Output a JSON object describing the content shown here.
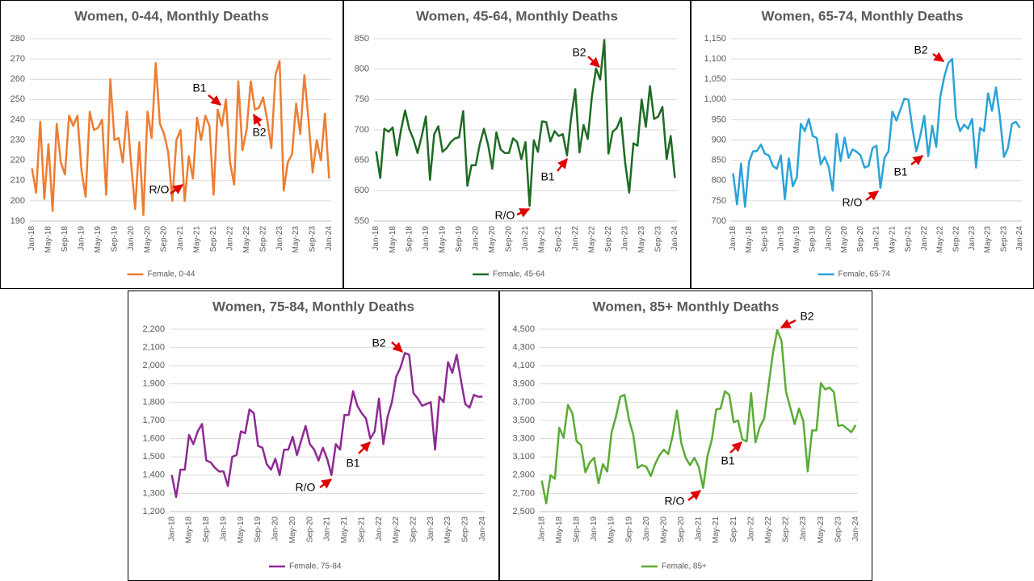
{
  "chart_data": [
    {
      "type": "line",
      "title": "Women, 0-44, Monthly Deaths",
      "categories": [
        "Jan-18",
        null,
        null,
        null,
        "May-18",
        null,
        null,
        null,
        "Sep-18",
        null,
        null,
        null,
        "Jan-19",
        null,
        null,
        null,
        "May-19",
        null,
        null,
        null,
        "Sep-19",
        null,
        null,
        null,
        "Jan-20",
        null,
        null,
        null,
        "May-20",
        null,
        null,
        null,
        "Sep-20",
        null,
        null,
        null,
        "Jan-21",
        null,
        null,
        null,
        "May-21",
        null,
        null,
        null,
        "Sep-21",
        null,
        null,
        null,
        "Jan-22",
        null,
        null,
        null,
        "May-22",
        null,
        null,
        null,
        "Sep-22",
        null,
        null,
        null,
        "Jan-23",
        null,
        null,
        null,
        "May-23",
        null,
        null,
        null,
        "Sep-23",
        null,
        null,
        null,
        "Jan-24"
      ],
      "series": [
        {
          "name": "Female, 0-44",
          "color": "#ed7d31",
          "values": [
            216,
            204,
            239,
            201,
            228,
            195,
            238,
            219,
            213,
            242,
            237,
            242,
            215,
            202,
            244,
            235,
            236,
            240,
            203,
            260,
            230,
            231,
            219,
            244,
            219,
            196,
            229,
            193,
            244,
            231,
            268,
            238,
            233,
            224,
            200,
            230,
            235,
            200,
            222,
            211,
            241,
            230,
            242,
            237,
            203,
            245,
            237,
            250,
            219,
            208,
            259,
            225,
            235,
            259,
            245,
            246,
            251,
            240,
            226,
            262,
            269,
            205,
            219,
            223,
            248,
            233,
            262,
            240,
            214,
            230,
            220,
            243,
            211
          ]
        }
      ],
      "ylim": [
        190,
        280
      ],
      "yticks": [
        190,
        200,
        210,
        220,
        230,
        240,
        250,
        260,
        270,
        280
      ],
      "grid": true,
      "legend": "bottom",
      "annotations": [
        "R/O",
        "B1",
        "B2"
      ]
    },
    {
      "type": "line",
      "title": "Women, 45-64, Monthly Deaths",
      "categories": [
        "Jan-18",
        null,
        null,
        null,
        "May-18",
        null,
        null,
        null,
        "Sep-18",
        null,
        null,
        null,
        "Jan-19",
        null,
        null,
        null,
        "May-19",
        null,
        null,
        null,
        "Sep-19",
        null,
        null,
        null,
        "Jan-20",
        null,
        null,
        null,
        "May-20",
        null,
        null,
        null,
        "Sep-20",
        null,
        null,
        null,
        "Jan-21",
        null,
        null,
        null,
        "May-21",
        null,
        null,
        null,
        "Sep-21",
        null,
        null,
        null,
        "Jan-22",
        null,
        null,
        null,
        "May-22",
        null,
        null,
        null,
        "Sep-22",
        null,
        null,
        null,
        "Jan-23",
        null,
        null,
        null,
        "May-23",
        null,
        null,
        null,
        "Sep-23",
        null,
        null,
        null,
        "Jan-24"
      ],
      "series": [
        {
          "name": "Female, 45-64",
          "color": "#1e6b24",
          "values": [
            665,
            621,
            702,
            697,
            704,
            658,
            700,
            732,
            701,
            685,
            662,
            690,
            722,
            618,
            693,
            706,
            664,
            670,
            680,
            686,
            688,
            731,
            608,
            642,
            642,
            677,
            702,
            675,
            636,
            696,
            668,
            662,
            662,
            686,
            680,
            652,
            680,
            575,
            683,
            664,
            714,
            713,
            681,
            698,
            690,
            693,
            658,
            720,
            767,
            663,
            708,
            685,
            755,
            801,
            783,
            848,
            661,
            697,
            703,
            720,
            647,
            597,
            678,
            674,
            750,
            705,
            772,
            718,
            722,
            738,
            652,
            690,
            621
          ]
        }
      ],
      "ylim": [
        550,
        850
      ],
      "yticks": [
        550,
        600,
        650,
        700,
        750,
        800,
        850
      ],
      "grid": true,
      "legend": "bottom",
      "annotations": [
        "R/O",
        "B1",
        "B2"
      ]
    },
    {
      "type": "line",
      "title": "Women, 65-74, Monthly Deaths",
      "categories": [
        "Jan-18",
        null,
        null,
        null,
        "May-18",
        null,
        null,
        null,
        "Sep-18",
        null,
        null,
        null,
        "Jan-19",
        null,
        null,
        null,
        "May-19",
        null,
        null,
        null,
        "Sep-19",
        null,
        null,
        null,
        "Jan-20",
        null,
        null,
        null,
        "May-20",
        null,
        null,
        null,
        "Sep-20",
        null,
        null,
        null,
        "Jan-21",
        null,
        null,
        null,
        "May-21",
        null,
        null,
        null,
        "Sep-21",
        null,
        null,
        null,
        "Jan-22",
        null,
        null,
        null,
        "May-22",
        null,
        null,
        null,
        "Sep-22",
        null,
        null,
        null,
        "Jan-23",
        null,
        null,
        null,
        "May-23",
        null,
        null,
        null,
        "Sep-23",
        null,
        null,
        null,
        "Jan-24"
      ],
      "series": [
        {
          "name": "Female, 65-74",
          "color": "#2aa3d8",
          "values": [
            818,
            741,
            842,
            735,
            846,
            872,
            873,
            889,
            866,
            862,
            836,
            829,
            862,
            754,
            855,
            786,
            808,
            940,
            922,
            952,
            910,
            905,
            840,
            858,
            834,
            775,
            915,
            848,
            906,
            856,
            877,
            871,
            862,
            832,
            836,
            880,
            886,
            782,
            856,
            872,
            970,
            948,
            975,
            1002,
            1000,
            930,
            872,
            910,
            960,
            860,
            935,
            883,
            1005,
            1055,
            1090,
            1100,
            955,
            922,
            938,
            928,
            952,
            832,
            930,
            922,
            1015,
            972,
            1030,
            955,
            858,
            880,
            940,
            945,
            930
          ]
        }
      ],
      "ylim": [
        700,
        1150
      ],
      "yticks": [
        700,
        750,
        800,
        850,
        900,
        950,
        {
          "value": 1000,
          "label": "1,000"
        },
        {
          "value": 1050,
          "label": "1,050"
        },
        {
          "value": 1100,
          "label": "1,100"
        },
        {
          "value": 1150,
          "label": "1,150"
        }
      ],
      "grid": true,
      "legend": "bottom",
      "annotations": [
        "R/O",
        "B1",
        "B2"
      ]
    },
    {
      "type": "line",
      "title": "Women, 75-84, Monthly Deaths",
      "categories": [
        "Jan-18",
        null,
        null,
        null,
        "May-18",
        null,
        null,
        null,
        "Sep-18",
        null,
        null,
        null,
        "Jan-19",
        null,
        null,
        null,
        "May-19",
        null,
        null,
        null,
        "Sep-19",
        null,
        null,
        null,
        "Jan-20",
        null,
        null,
        null,
        "May-20",
        null,
        null,
        null,
        "Sep-20",
        null,
        null,
        null,
        "Jan-21",
        null,
        null,
        null,
        "May-21",
        null,
        null,
        null,
        "Sep-21",
        null,
        null,
        null,
        "Jan-22",
        null,
        null,
        null,
        "May-22",
        null,
        null,
        null,
        "Sep-22",
        null,
        null,
        null,
        "Jan-23",
        null,
        null,
        null,
        "May-23",
        null,
        null,
        null,
        "Sep-23",
        null,
        null,
        null,
        "Jan-24"
      ],
      "series": [
        {
          "name": "Female, 75-84",
          "color": "#8e2a94",
          "values": [
            1400,
            1280,
            1430,
            1430,
            1620,
            1570,
            1640,
            1680,
            1480,
            1470,
            1440,
            1420,
            1420,
            1340,
            1500,
            1510,
            1640,
            1630,
            1760,
            1740,
            1560,
            1550,
            1460,
            1430,
            1490,
            1400,
            1540,
            1540,
            1610,
            1510,
            1590,
            1670,
            1570,
            1540,
            1480,
            1550,
            1490,
            1400,
            1570,
            1540,
            1730,
            1730,
            1860,
            1780,
            1740,
            1710,
            1600,
            1640,
            1820,
            1570,
            1720,
            1800,
            1940,
            1990,
            2070,
            2060,
            1850,
            1820,
            1780,
            1790,
            1800,
            1540,
            1830,
            1800,
            2020,
            1960,
            2060,
            1920,
            1790,
            1770,
            1840,
            1830,
            1830
          ]
        }
      ],
      "ylim": [
        1200,
        2200
      ],
      "yticks": [
        {
          "value": 1200,
          "label": "1,200"
        },
        {
          "value": 1300,
          "label": "1,300"
        },
        {
          "value": 1400,
          "label": "1,400"
        },
        {
          "value": 1500,
          "label": "1,500"
        },
        {
          "value": 1600,
          "label": "1,600"
        },
        {
          "value": 1700,
          "label": "1,700"
        },
        {
          "value": 1800,
          "label": "1,800"
        },
        {
          "value": 1900,
          "label": "1,900"
        },
        {
          "value": 2000,
          "label": "2,000"
        },
        {
          "value": 2100,
          "label": "2,100"
        },
        {
          "value": 2200,
          "label": "2,200"
        }
      ],
      "grid": true,
      "legend": "bottom",
      "annotations": [
        "R/O",
        "B1",
        "B2"
      ]
    },
    {
      "type": "line",
      "title": "Women, 85+ Monthly Deaths",
      "categories": [
        "Jan-18",
        null,
        null,
        null,
        "May-18",
        null,
        null,
        null,
        "Sep-18",
        null,
        null,
        null,
        "Jan-19",
        null,
        null,
        null,
        "May-19",
        null,
        null,
        null,
        "Sep-19",
        null,
        null,
        null,
        "Jan-20",
        null,
        null,
        null,
        "May-20",
        null,
        null,
        null,
        "Sep-20",
        null,
        null,
        null,
        "Jan-21",
        null,
        null,
        null,
        "May-21",
        null,
        null,
        null,
        "Sep-21",
        null,
        null,
        null,
        "Jan-22",
        null,
        null,
        null,
        "May-22",
        null,
        null,
        null,
        "Sep-22",
        null,
        null,
        null,
        "Jan-23",
        null,
        null,
        null,
        "May-23",
        null,
        null,
        null,
        "Sep-23",
        null,
        null,
        null,
        "Jan-24"
      ],
      "series": [
        {
          "name": "Female, 85+",
          "color": "#5aac35",
          "values": [
            2840,
            2590,
            2900,
            2860,
            3420,
            3310,
            3670,
            3580,
            3270,
            3230,
            2930,
            3040,
            3090,
            2810,
            3020,
            2940,
            3370,
            3540,
            3760,
            3780,
            3510,
            3340,
            2980,
            3010,
            2990,
            2890,
            3020,
            3120,
            3180,
            3130,
            3330,
            3610,
            3250,
            3090,
            3010,
            3090,
            2990,
            2760,
            3110,
            3290,
            3620,
            3630,
            3820,
            3780,
            3480,
            3500,
            3290,
            3270,
            3800,
            3260,
            3430,
            3520,
            3880,
            4240,
            4490,
            4370,
            3820,
            3640,
            3460,
            3630,
            3490,
            2940,
            3390,
            3390,
            3910,
            3840,
            3860,
            3810,
            3440,
            3450,
            3410,
            3370,
            3450
          ]
        }
      ],
      "ylim": [
        2500,
        4500
      ],
      "yticks": [
        {
          "value": 2500,
          "label": "2,500"
        },
        {
          "value": 2700,
          "label": "2,700"
        },
        {
          "value": 2900,
          "label": "2,900"
        },
        {
          "value": 3100,
          "label": "3,100"
        },
        {
          "value": 3300,
          "label": "3,300"
        },
        {
          "value": 3500,
          "label": "3,500"
        },
        {
          "value": 3700,
          "label": "3,700"
        },
        {
          "value": 3900,
          "label": "3,900"
        },
        {
          "value": 4100,
          "label": "4,100"
        },
        {
          "value": 4300,
          "label": "4,300"
        },
        {
          "value": 4500,
          "label": "4,500"
        }
      ],
      "grid": true,
      "legend": "bottom",
      "annotations": [
        "R/O",
        "B1",
        "B2"
      ]
    }
  ]
}
